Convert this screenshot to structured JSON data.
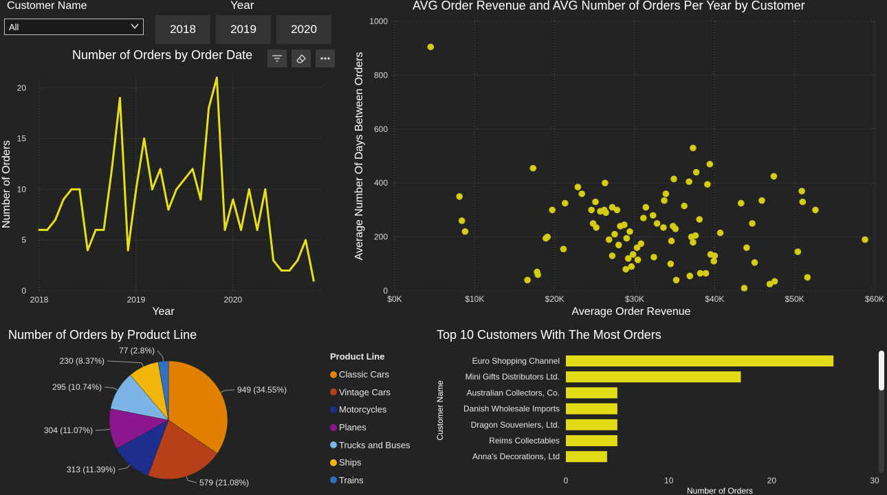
{
  "slicer_customer": {
    "label": "Customer Name",
    "value": "All"
  },
  "slicer_year": {
    "label": "Year",
    "options": [
      "2018",
      "2019",
      "2020"
    ]
  },
  "line_visual": {
    "title": "Number of Orders by Order Date",
    "icons": [
      "filter-icon",
      "eraser-icon",
      "more-options-icon"
    ]
  },
  "scatter_visual": {
    "title": "AVG Order Revenue and AVG Number of Orders Per Year by Customer"
  },
  "pie_visual": {
    "title": "Number of Orders by Product Line"
  },
  "bar_visual": {
    "title": "Top 10 Customers With The Most Orders"
  },
  "colors": {
    "line": "#e6e01a",
    "scatter": "#d4cc14",
    "bar": "#e2dc18",
    "gridline": "#5a5a5a",
    "axis_text": "#d9d9d9"
  },
  "chart_data": [
    {
      "type": "line",
      "xlabel": "Year",
      "ylabel": "Number of Orders",
      "xticks": [
        "2018",
        "2019",
        "2020"
      ],
      "yticks": [
        0,
        5,
        10,
        15,
        20
      ],
      "ylim": [
        0,
        21
      ],
      "xlim": [
        0,
        35
      ],
      "series": [
        {
          "x": [
            0,
            1,
            2,
            3,
            4,
            5,
            6,
            7,
            8,
            9,
            10,
            11,
            12,
            13,
            14,
            15,
            16,
            17,
            18,
            19,
            20,
            21,
            22,
            23,
            24,
            25,
            26,
            27,
            28,
            29,
            30,
            31,
            32,
            33,
            34
          ],
          "values": [
            6,
            6,
            7,
            9,
            10,
            10,
            4,
            6,
            6,
            12,
            19,
            4,
            10,
            15,
            10,
            12,
            8,
            10,
            11,
            12,
            9,
            18,
            21,
            6,
            9,
            6,
            10,
            6,
            10,
            3,
            2,
            2,
            3,
            5,
            1
          ]
        }
      ]
    },
    {
      "type": "scatter",
      "xlabel": "Average Order Revenue",
      "ylabel": "Average Number Of Days Between Orders",
      "xlim": [
        0,
        60000
      ],
      "ylim": [
        0,
        1000
      ],
      "xticks": [
        "$0K",
        "$10K",
        "$20K",
        "$30K",
        "$40K",
        "$50K",
        "$60K"
      ],
      "yticks": [
        0,
        200,
        400,
        600,
        800,
        1000
      ],
      "points": [
        [
          4500,
          905
        ],
        [
          8100,
          350
        ],
        [
          8400,
          260
        ],
        [
          8800,
          220
        ],
        [
          16600,
          40
        ],
        [
          17300,
          455
        ],
        [
          17800,
          70
        ],
        [
          17900,
          60
        ],
        [
          18900,
          195
        ],
        [
          19100,
          200
        ],
        [
          19700,
          300
        ],
        [
          21100,
          155
        ],
        [
          21300,
          325
        ],
        [
          22900,
          385
        ],
        [
          23400,
          360
        ],
        [
          24600,
          300
        ],
        [
          24800,
          250
        ],
        [
          25100,
          330
        ],
        [
          25200,
          235
        ],
        [
          25700,
          295
        ],
        [
          26200,
          300
        ],
        [
          26300,
          400
        ],
        [
          26400,
          290
        ],
        [
          26800,
          190
        ],
        [
          27200,
          130
        ],
        [
          27200,
          310
        ],
        [
          27500,
          210
        ],
        [
          27800,
          300
        ],
        [
          28000,
          170
        ],
        [
          28200,
          240
        ],
        [
          28700,
          245
        ],
        [
          28900,
          80
        ],
        [
          29000,
          195
        ],
        [
          29200,
          120
        ],
        [
          29400,
          220
        ],
        [
          29600,
          90
        ],
        [
          29800,
          135
        ],
        [
          30300,
          160
        ],
        [
          30400,
          115
        ],
        [
          30800,
          175
        ],
        [
          31100,
          270
        ],
        [
          31400,
          310
        ],
        [
          32300,
          280
        ],
        [
          32400,
          125
        ],
        [
          32800,
          250
        ],
        [
          33600,
          235
        ],
        [
          33700,
          335
        ],
        [
          33900,
          360
        ],
        [
          34500,
          100
        ],
        [
          34600,
          185
        ],
        [
          34800,
          240
        ],
        [
          34900,
          415
        ],
        [
          35100,
          230
        ],
        [
          35200,
          40
        ],
        [
          36200,
          315
        ],
        [
          36800,
          405
        ],
        [
          36900,
          55
        ],
        [
          37100,
          200
        ],
        [
          37300,
          180
        ],
        [
          37300,
          530
        ],
        [
          37600,
          205
        ],
        [
          37700,
          440
        ],
        [
          38100,
          265
        ],
        [
          38200,
          65
        ],
        [
          38900,
          65
        ],
        [
          39100,
          395
        ],
        [
          39400,
          470
        ],
        [
          39500,
          135
        ],
        [
          39900,
          110
        ],
        [
          40000,
          130
        ],
        [
          40700,
          215
        ],
        [
          43300,
          325
        ],
        [
          43700,
          10
        ],
        [
          44000,
          160
        ],
        [
          44700,
          250
        ],
        [
          45000,
          105
        ],
        [
          45900,
          335
        ],
        [
          46900,
          25
        ],
        [
          47400,
          425
        ],
        [
          47500,
          35
        ],
        [
          50400,
          145
        ],
        [
          50900,
          370
        ],
        [
          51000,
          330
        ],
        [
          51600,
          50
        ],
        [
          52600,
          300
        ],
        [
          58800,
          190
        ]
      ]
    },
    {
      "type": "pie",
      "legend_title": "Product Line",
      "categories": [
        "Classic Cars",
        "Vintage Cars",
        "Motorcycles",
        "Planes",
        "Trucks and Buses",
        "Ships",
        "Trains"
      ],
      "values": [
        949,
        579,
        313,
        304,
        295,
        230,
        77
      ],
      "labels": [
        "949 (34.55%)",
        "579 (21.08%)",
        "313 (11.39%)",
        "304 (11.07%)",
        "295 (10.74%)",
        "230 (8.37%)",
        "77 (2.8%)"
      ],
      "colors": [
        "#e28000",
        "#b6401a",
        "#1d2e8f",
        "#8c168f",
        "#7cb4e6",
        "#f2b50c",
        "#2f72c5"
      ]
    },
    {
      "type": "bar",
      "orientation": "horizontal",
      "xlabel": "Number of Orders",
      "ylabel": "Customer Name",
      "xlim": [
        0,
        30
      ],
      "xticks": [
        0,
        10,
        20,
        30
      ],
      "categories": [
        "Euro Shopping Channel",
        "Mini Gifts Distributors Ltd.",
        "Australian Collectors, Co.",
        "Danish Wholesale Imports",
        "Dragon Souveniers, Ltd.",
        "Reims Collectables",
        "Anna's Decorations, Ltd"
      ],
      "values": [
        26,
        17,
        5,
        5,
        5,
        5,
        4
      ]
    }
  ]
}
